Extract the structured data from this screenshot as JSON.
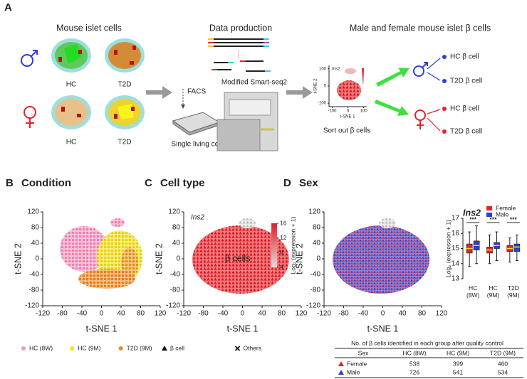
{
  "panel_a": {
    "label": "A",
    "sections": [
      "Mouse islet cells",
      "Data production",
      "Male and female mouse islet β cells"
    ],
    "conditions": [
      "HC",
      "T2D",
      "HC",
      "T2D"
    ],
    "facs": "FACS",
    "single_cell": "Single living cell",
    "smartseq": "Modified Smart-seq2",
    "sort_out": "Sort out β cells",
    "mini_tsne": {
      "gene": "Ins2",
      "xlabel": "t-SNE 1",
      "ylabel": "t-SNE 2",
      "xticks": [
        -100,
        0,
        100
      ],
      "yticks": [
        -100,
        0,
        100
      ]
    },
    "outputs": [
      "HC β cell",
      "T2D β cell",
      "HC β cell",
      "T2D β cell"
    ]
  },
  "chart_data": [
    {
      "type": "scatter",
      "panel": "B",
      "title": "Condition",
      "xlabel": "t-SNE 1",
      "ylabel": "t-SNE 2",
      "xlim": [
        -120,
        120
      ],
      "ylim": [
        -120,
        120
      ],
      "xticks": [
        -120,
        -80,
        -40,
        0,
        40,
        80,
        120
      ],
      "yticks": [
        -120,
        -80,
        -40,
        0,
        40,
        80,
        120
      ],
      "legend": "bottom",
      "series": [
        {
          "name": "HC (8W)",
          "color": "#f49ac1"
        },
        {
          "name": "HC (9M)",
          "color": "#f3e21c"
        },
        {
          "name": "T2D (9M)",
          "color": "#ef8a25"
        }
      ]
    },
    {
      "type": "scatter",
      "panel": "C",
      "title": "Cell type",
      "xlabel": "t-SNE 1",
      "ylabel": "t-SNE 2",
      "xlim": [
        -120,
        120
      ],
      "ylim": [
        -120,
        120
      ],
      "xticks": [
        -120,
        -80,
        -40,
        0,
        40,
        80,
        120
      ],
      "yticks": [
        -120,
        -80,
        -40,
        0,
        40,
        80,
        120
      ],
      "annotations": [
        "Ins2",
        "β cells"
      ],
      "legend": "bottom",
      "colorbar": {
        "label": "Log₂ (expression + 1)",
        "lim": [
          4,
          16
        ],
        "ticks": [
          4,
          8,
          12,
          16
        ],
        "colors": [
          "#dcdcdc",
          "#e21f26"
        ]
      },
      "series": [
        {
          "name": "β cell",
          "marker": "triangle"
        },
        {
          "name": "Others",
          "marker": "x"
        }
      ]
    },
    {
      "type": "scatter",
      "panel": "D",
      "title": "Sex",
      "xlabel": "t-SNE 1",
      "ylabel": "t-SNE 2",
      "xlim": [
        -120,
        120
      ],
      "ylim": [
        -120,
        120
      ],
      "xticks": [
        -120,
        -80,
        -40,
        0,
        40,
        80,
        120
      ],
      "yticks": [
        -120,
        -80,
        -40,
        0,
        40,
        80,
        120
      ]
    },
    {
      "type": "box",
      "title": "Ins2",
      "ylabel": "Log₂ (expression + 1)",
      "ylim": [
        13,
        17
      ],
      "yticks": [
        13,
        14,
        15,
        16,
        17
      ],
      "categories": [
        "HC (8W)",
        "HC (9M)",
        "T2D (9M)"
      ],
      "significance": [
        "***",
        "***",
        "***"
      ],
      "legend": "upper right",
      "series": [
        {
          "name": "Female",
          "color": "#e4222a",
          "boxes": [
            {
              "min": 13.8,
              "q1": 14.7,
              "median": 15.0,
              "q3": 15.3,
              "max": 16.1
            },
            {
              "min": 14.0,
              "q1": 14.7,
              "median": 14.9,
              "q3": 15.1,
              "max": 15.9
            },
            {
              "min": 14.1,
              "q1": 14.8,
              "median": 15.0,
              "q3": 15.2,
              "max": 15.7
            }
          ]
        },
        {
          "name": "Male",
          "color": "#2b3fd6",
          "boxes": [
            {
              "min": 14.0,
              "q1": 14.9,
              "median": 15.2,
              "q3": 15.5,
              "max": 16.5
            },
            {
              "min": 14.2,
              "q1": 15.0,
              "median": 15.2,
              "q3": 15.4,
              "max": 16.1
            },
            {
              "min": 14.2,
              "q1": 14.8,
              "median": 15.1,
              "q3": 15.3,
              "max": 15.9
            }
          ]
        }
      ]
    }
  ],
  "table": {
    "title": "No. of β cells identified in each group after quality control",
    "header": [
      "Sex",
      "HC (8W)",
      "HC (9M)",
      "T2D (9M)"
    ],
    "rows": [
      [
        "Female",
        "538",
        "399",
        "460"
      ],
      [
        "Male",
        "726",
        "541",
        "534"
      ]
    ]
  }
}
